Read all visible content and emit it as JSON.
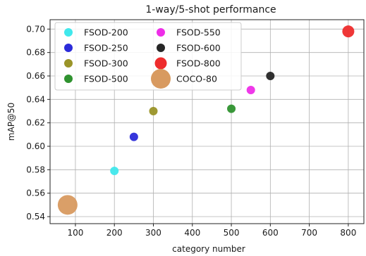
{
  "chart_data": {
    "type": "scatter",
    "title": "1-way/5-shot performance",
    "xlabel": "category number",
    "ylabel": "mAP@50",
    "xlim": [
      35,
      840
    ],
    "ylim": [
      0.534,
      0.708
    ],
    "xticks": [
      100,
      200,
      300,
      400,
      500,
      600,
      700,
      800
    ],
    "yticks": [
      0.54,
      0.56,
      0.58,
      0.6,
      0.62,
      0.64,
      0.66,
      0.68,
      0.7
    ],
    "ytick_labels": [
      "0.54",
      "0.56",
      "0.58",
      "0.60",
      "0.62",
      "0.64",
      "0.66",
      "0.68",
      "0.70"
    ],
    "grid": true,
    "legend_position": "top-left",
    "legend_columns": 2,
    "series": [
      {
        "name": "FSOD-200",
        "x": 200,
        "y": 0.579,
        "color": "#40e8ec",
        "size": "small"
      },
      {
        "name": "FSOD-250",
        "x": 250,
        "y": 0.608,
        "color": "#2b2bd9",
        "size": "small"
      },
      {
        "name": "FSOD-300",
        "x": 300,
        "y": 0.63,
        "color": "#9a9428",
        "size": "small"
      },
      {
        "name": "FSOD-500",
        "x": 500,
        "y": 0.632,
        "color": "#2f922f",
        "size": "small"
      },
      {
        "name": "FSOD-550",
        "x": 550,
        "y": 0.648,
        "color": "#ee2ee8",
        "size": "small"
      },
      {
        "name": "FSOD-600",
        "x": 600,
        "y": 0.66,
        "color": "#262626",
        "size": "small"
      },
      {
        "name": "FSOD-800",
        "x": 800,
        "y": 0.698,
        "color": "#ee2c2c",
        "size": "medium"
      },
      {
        "name": "COCO-80",
        "x": 80,
        "y": 0.55,
        "color": "#d89a60",
        "size": "large"
      }
    ]
  }
}
